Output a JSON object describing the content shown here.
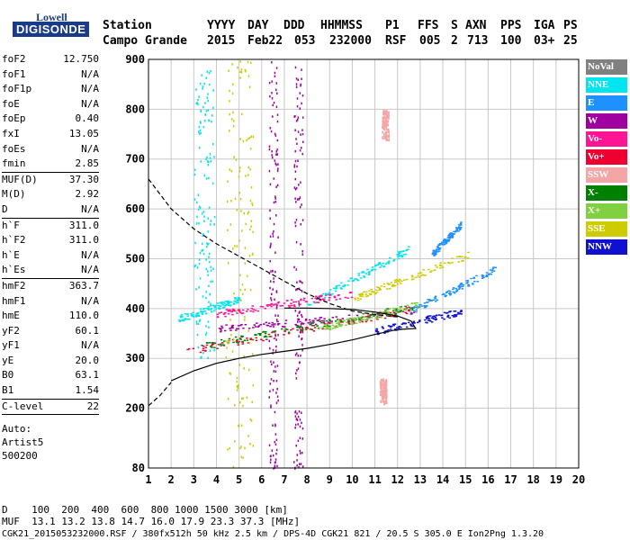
{
  "logo": {
    "top": "Lowell",
    "main": "DIGISONDE"
  },
  "header": {
    "labels": {
      "station": "Station",
      "yyyy": "YYYY",
      "day": "DAY",
      "ddd": "DDD",
      "hhmmss": "HHMMSS",
      "p1": "P1",
      "ffs": "FFS",
      "s": "S",
      "axn": "AXN",
      "pps": "PPS",
      "iga": "IGA",
      "ps": "PS"
    },
    "values": {
      "station": "Campo Grande",
      "yyyy": "2015",
      "day": "Feb22",
      "ddd": "053",
      "hhmmss": "232000",
      "p1": "RSF",
      "ffs": "005",
      "s": "2",
      "axn": "713",
      "pps": "100",
      "iga": "03+",
      "ps": "25"
    }
  },
  "params": [
    {
      "key": "foF2",
      "value": "12.750"
    },
    {
      "key": "foF1",
      "value": "N/A"
    },
    {
      "key": "foF1p",
      "value": "N/A"
    },
    {
      "key": "foE",
      "value": "N/A"
    },
    {
      "key": "foEp",
      "value": "0.40"
    },
    {
      "key": "fxI",
      "value": "13.05"
    },
    {
      "key": "foEs",
      "value": "N/A"
    },
    {
      "key": "fmin",
      "value": "2.85",
      "sep": true
    },
    {
      "key": "MUF(D)",
      "value": "37.30"
    },
    {
      "key": "M(D)",
      "value": "2.92"
    },
    {
      "key": "D",
      "value": "N/A",
      "sep": true
    },
    {
      "key": "h`F",
      "value": "311.0"
    },
    {
      "key": "h`F2",
      "value": "311.0"
    },
    {
      "key": "h`E",
      "value": "N/A"
    },
    {
      "key": "h`Es",
      "value": "N/A",
      "sep": true
    },
    {
      "key": "hmF2",
      "value": "363.7"
    },
    {
      "key": "hmF1",
      "value": "N/A"
    },
    {
      "key": "hmE",
      "value": "110.0"
    },
    {
      "key": "yF2",
      "value": "60.1"
    },
    {
      "key": "yF1",
      "value": "N/A"
    },
    {
      "key": "yE",
      "value": "20.0"
    },
    {
      "key": "B0",
      "value": "63.1"
    },
    {
      "key": "B1",
      "value": "1.54",
      "sep": true
    },
    {
      "key": "C-level",
      "value": "22",
      "sep": true
    }
  ],
  "auto": [
    "Auto:",
    "Artist5",
    "500200"
  ],
  "legend": [
    {
      "label": "NoVal",
      "color": "#808080"
    },
    {
      "label": "NNE",
      "color": "#00e5ee"
    },
    {
      "label": "E",
      "color": "#1e90ff"
    },
    {
      "label": "W",
      "color": "#a000a0"
    },
    {
      "label": "Vo-",
      "color": "#ff1493"
    },
    {
      "label": "Vo+",
      "color": "#ee0033"
    },
    {
      "label": "SSW",
      "color": "#f4a6a6"
    },
    {
      "label": "X-",
      "color": "#008000"
    },
    {
      "label": "X+",
      "color": "#80d040"
    },
    {
      "label": "SSE",
      "color": "#cccc00"
    },
    {
      "label": "NNW",
      "color": "#1010d0"
    }
  ],
  "bottom": {
    "d_line": "D    100  200  400  600  800 1000 1500 3000 [km]",
    "muf_line": "MUF  13.1 13.2 13.8 14.7 16.0 17.9 23.3 37.3 [MHz]",
    "footer": "CGK21_2015053232000.RSF / 380fx512h 50 kHz 2.5 km / DPS-4D CGK21 821 / 20.5 S 305.0 E Ion2Png 1.3.20"
  },
  "chart_data": {
    "type": "scatter",
    "title": "",
    "xlabel": "",
    "ylabel": "",
    "xlim": [
      1,
      20
    ],
    "ylim": [
      80,
      900
    ],
    "x_ticks": [
      1,
      2,
      3,
      4,
      5,
      6,
      7,
      8,
      9,
      10,
      11,
      12,
      13,
      14,
      15,
      16,
      17,
      18,
      19,
      20
    ],
    "y_ticks": [
      80,
      200,
      300,
      400,
      500,
      600,
      700,
      800,
      900
    ],
    "grid": true,
    "legend_position": "right",
    "series": [
      {
        "name": "NNE",
        "color": "#00e5ee",
        "traces": [
          {
            "x_start": 3.0,
            "x_end": 3.9,
            "y_start": 300,
            "y_end": 880,
            "kind": "vertical"
          },
          {
            "x_start": 2.3,
            "x_end": 5.0,
            "y_start": 380,
            "y_end": 420,
            "kind": "band"
          },
          {
            "x_start": 8.0,
            "x_end": 12.5,
            "y_start": 410,
            "y_end": 520,
            "kind": "band"
          }
        ]
      },
      {
        "name": "E",
        "color": "#1e90ff",
        "traces": [
          {
            "x_start": 12.5,
            "x_end": 16.3,
            "y_start": 395,
            "y_end": 480,
            "kind": "band"
          },
          {
            "x_start": 13.5,
            "x_end": 14.8,
            "y_start": 510,
            "y_end": 570,
            "kind": "band"
          }
        ]
      },
      {
        "name": "W",
        "color": "#a000a0",
        "traces": [
          {
            "x_start": 6.3,
            "x_end": 6.7,
            "y_start": 80,
            "y_end": 900,
            "kind": "vertical"
          },
          {
            "x_start": 7.4,
            "x_end": 7.8,
            "y_start": 80,
            "y_end": 890,
            "kind": "vertical"
          },
          {
            "x_start": 4.0,
            "x_end": 12.0,
            "y_start": 360,
            "y_end": 390,
            "kind": "band"
          }
        ]
      },
      {
        "name": "Vo-",
        "color": "#ff1493",
        "traces": [
          {
            "x_start": 4.0,
            "x_end": 10.0,
            "y_start": 390,
            "y_end": 430,
            "kind": "band"
          }
        ]
      },
      {
        "name": "Vo+",
        "color": "#ee0033",
        "traces": [
          {
            "x_start": 2.6,
            "x_end": 12.8,
            "y_start": 315,
            "y_end": 400,
            "kind": "band"
          }
        ]
      },
      {
        "name": "SSW",
        "color": "#f4a6a6",
        "traces": [
          {
            "x_start": 11.2,
            "x_end": 11.5,
            "y_start": 210,
            "y_end": 260,
            "kind": "vertical"
          },
          {
            "x_start": 11.3,
            "x_end": 11.6,
            "y_start": 740,
            "y_end": 800,
            "kind": "vertical"
          }
        ]
      },
      {
        "name": "X-",
        "color": "#008000",
        "traces": [
          {
            "x_start": 3.3,
            "x_end": 12.8,
            "y_start": 325,
            "y_end": 405,
            "kind": "band"
          }
        ]
      },
      {
        "name": "X+",
        "color": "#80d040",
        "traces": [
          {
            "x_start": 8.5,
            "x_end": 13.0,
            "y_start": 360,
            "y_end": 410,
            "kind": "band"
          }
        ]
      },
      {
        "name": "SSE",
        "color": "#cccc00",
        "traces": [
          {
            "x_start": 4.4,
            "x_end": 5.6,
            "y_start": 80,
            "y_end": 900,
            "kind": "vertical"
          },
          {
            "x_start": 10.0,
            "x_end": 15.2,
            "y_start": 420,
            "y_end": 510,
            "kind": "band"
          }
        ]
      },
      {
        "name": "NNW",
        "color": "#1010d0",
        "traces": [
          {
            "x_start": 11.0,
            "x_end": 14.8,
            "y_start": 355,
            "y_end": 395,
            "kind": "band"
          }
        ]
      }
    ],
    "profile_solid": [
      [
        2.0,
        255
      ],
      [
        3.0,
        275
      ],
      [
        4.0,
        290
      ],
      [
        5.0,
        300
      ],
      [
        6.0,
        308
      ],
      [
        7.0,
        314
      ],
      [
        8.0,
        320
      ],
      [
        9.0,
        328
      ],
      [
        10.0,
        337
      ],
      [
        11.0,
        348
      ],
      [
        12.0,
        358
      ],
      [
        12.8,
        360
      ],
      [
        12.6,
        375
      ],
      [
        12.0,
        385
      ],
      [
        11.0,
        393
      ],
      [
        10.0,
        398
      ],
      [
        9.0,
        400
      ],
      [
        8.0,
        401
      ],
      [
        7.0,
        401
      ]
    ],
    "profile_dashed_lower": [
      [
        1.0,
        205
      ],
      [
        1.5,
        225
      ],
      [
        2.0,
        252
      ]
    ],
    "profile_dashed_upper": [
      [
        1.0,
        660
      ],
      [
        2.0,
        600
      ],
      [
        3.0,
        560
      ],
      [
        4.0,
        530
      ],
      [
        5.0,
        505
      ],
      [
        6.0,
        480
      ],
      [
        7.0,
        455
      ],
      [
        8.0,
        430
      ],
      [
        9.0,
        410
      ],
      [
        10.0,
        395
      ],
      [
        11.0,
        388
      ],
      [
        12.0,
        383
      ]
    ]
  }
}
